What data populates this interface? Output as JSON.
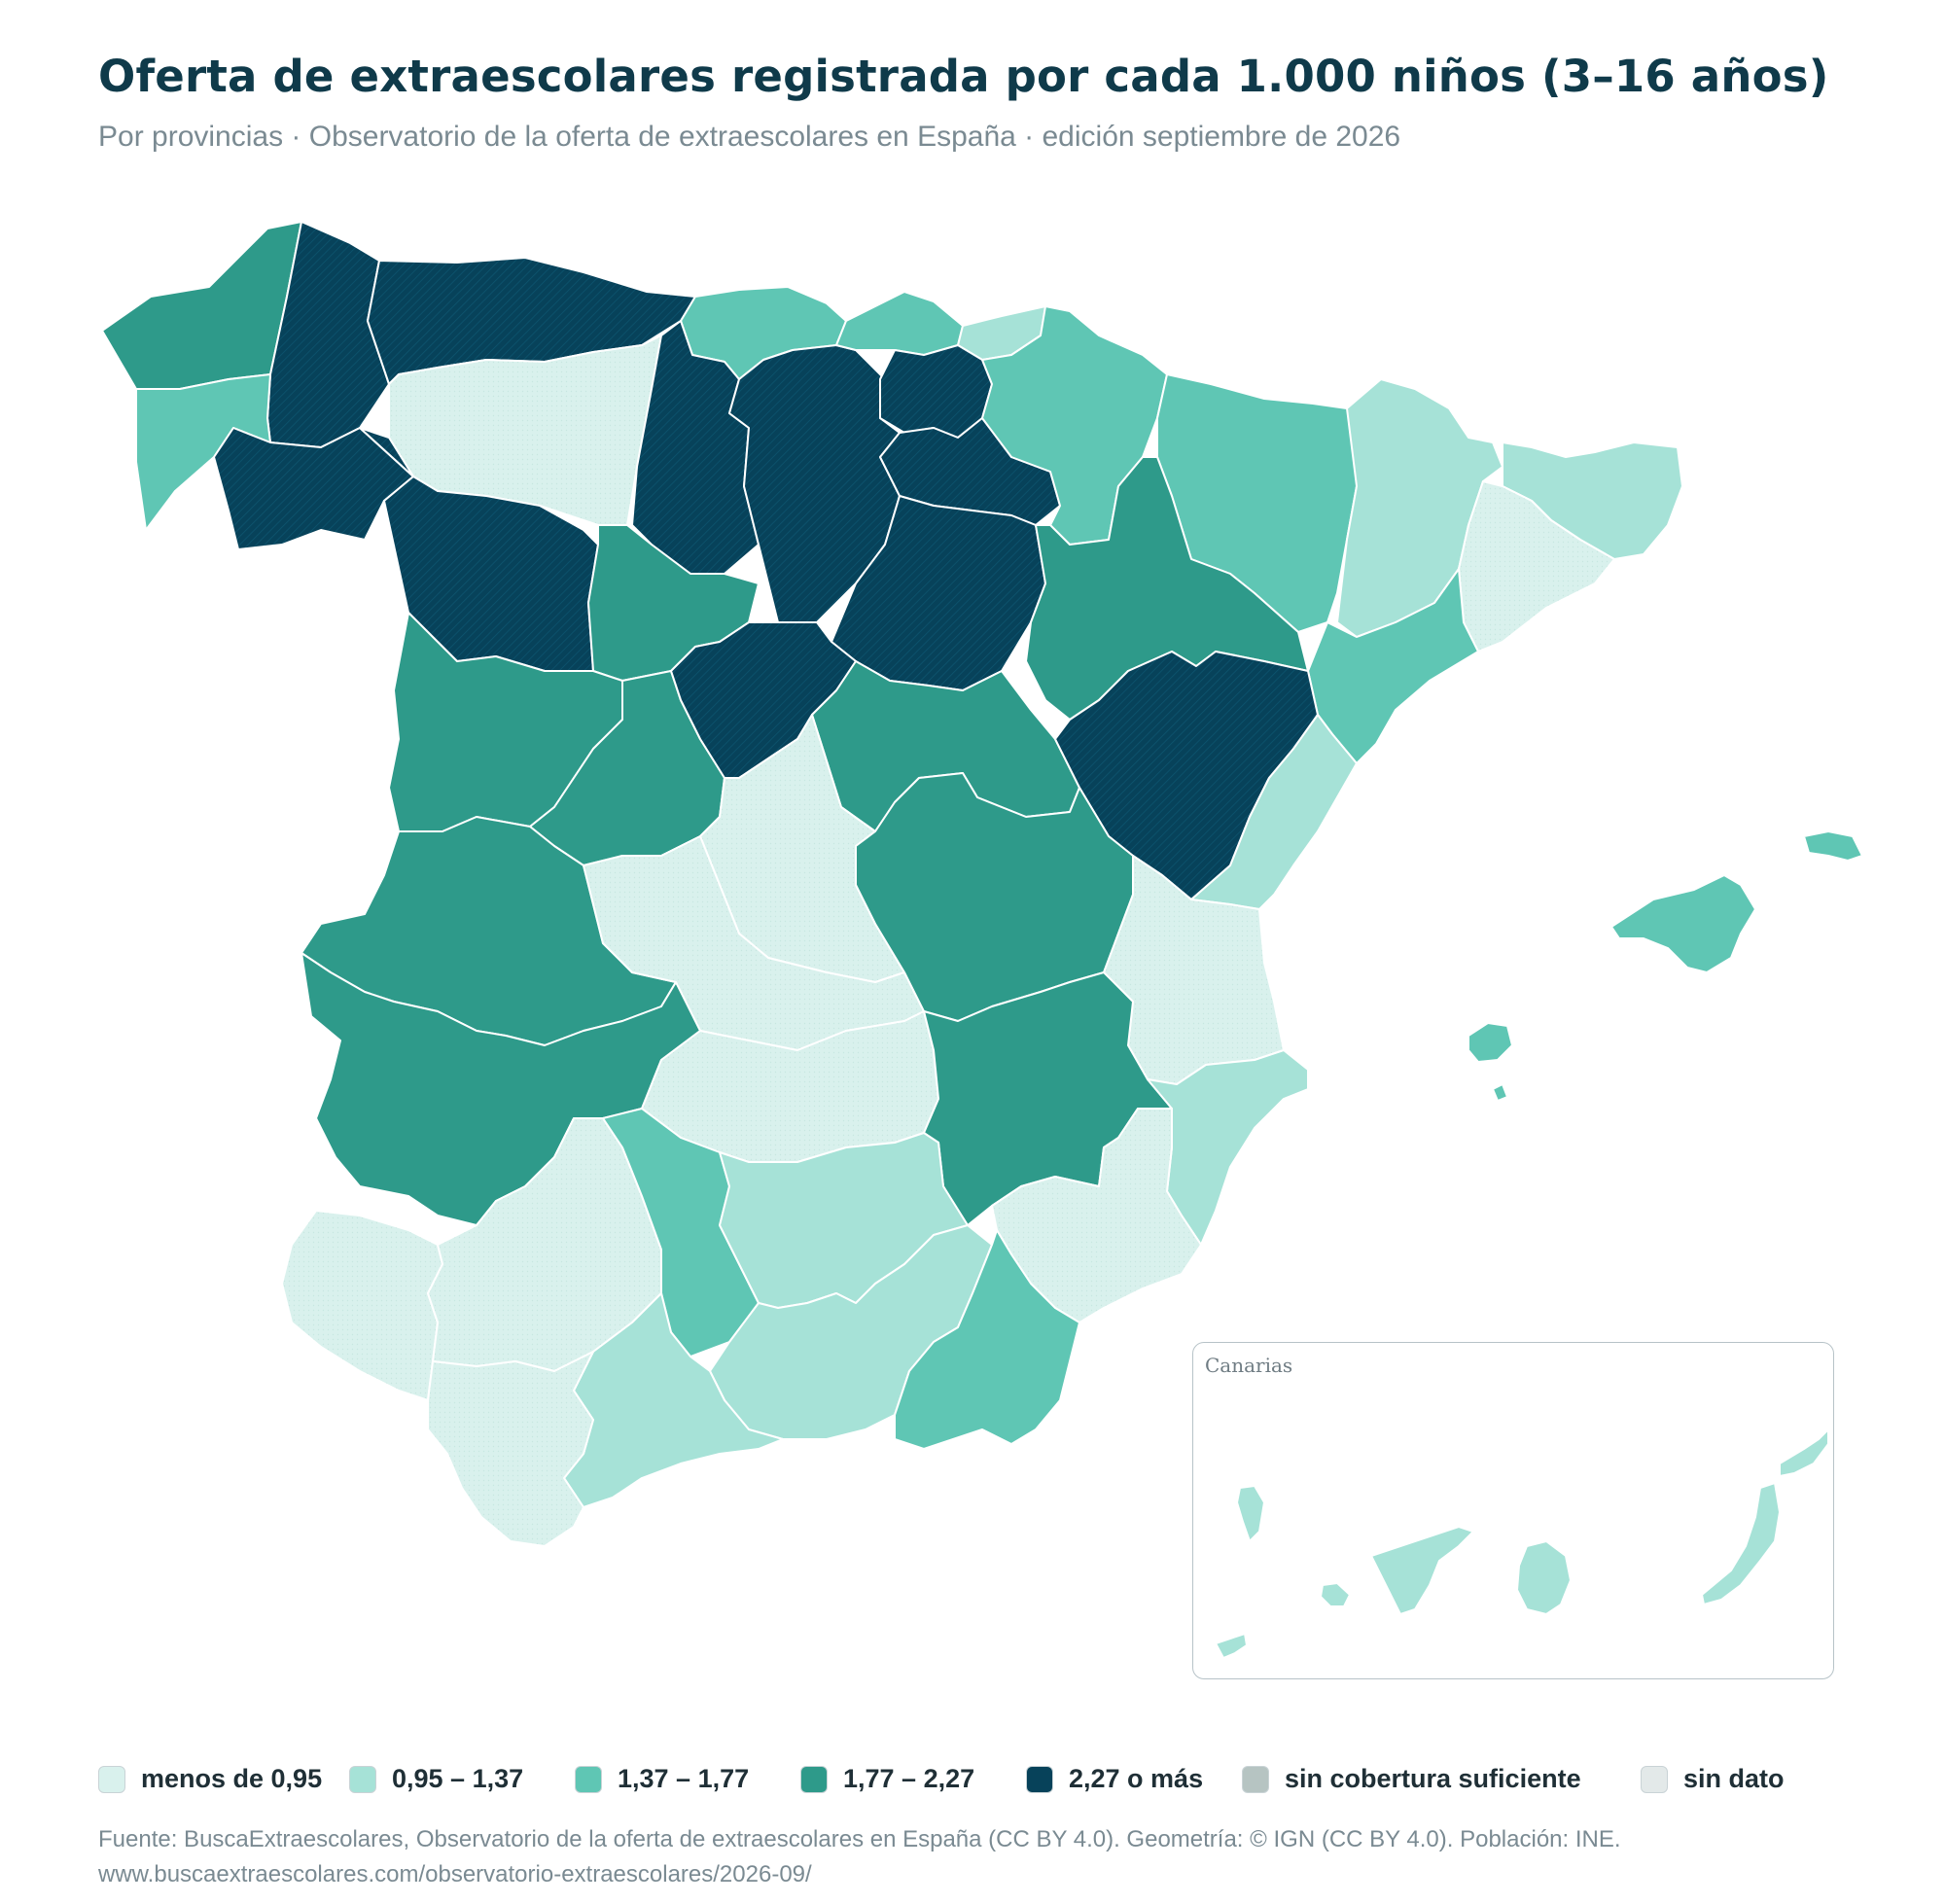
{
  "title": "Oferta de extraescolares registrada por cada 1.000 niños (3–16 años)",
  "subtitle": "Por provincias · Observatorio de la oferta de extraescolares en España · edición septiembre de 2026",
  "inset_label": "Canarias",
  "legend": [
    {
      "label": "menos de 0,95",
      "color": "#d9f1ed"
    },
    {
      "label": "0,95 – 1,37",
      "color": "#a6e2d7"
    },
    {
      "label": "1,37 – 1,77",
      "color": "#5fc6b4"
    },
    {
      "label": "1,77 – 2,27",
      "color": "#2e9a8a"
    },
    {
      "label": "2,27 o más",
      "color": "#07425a"
    },
    {
      "label": "sin cobertura suficiente",
      "color": "#b6c4c2"
    },
    {
      "label": "sin dato",
      "color": "#e3e9e9"
    }
  ],
  "source": "Fuente: BuscaExtraescolares, Observatorio de la oferta de extraescolares en España (CC BY 4.0). Geometría: © IGN (CC BY 4.0). Población: INE.",
  "url": "www.buscaextraescolares.com/observatorio-extraescolares/2026-09/",
  "provinces": [
    {
      "name": "A Coruña",
      "class": 3
    },
    {
      "name": "Lugo",
      "class": 4
    },
    {
      "name": "Pontevedra",
      "class": 2
    },
    {
      "name": "Ourense",
      "class": 4
    },
    {
      "name": "Asturias",
      "class": 4
    },
    {
      "name": "León",
      "class": 0
    },
    {
      "name": "Zamora",
      "class": 4
    },
    {
      "name": "Cantabria",
      "class": 2
    },
    {
      "name": "Palencia",
      "class": 4
    },
    {
      "name": "Burgos",
      "class": 4
    },
    {
      "name": "Vizcaya",
      "class": 2
    },
    {
      "name": "Guipúzcoa",
      "class": 1
    },
    {
      "name": "Álava",
      "class": 4
    },
    {
      "name": "La Rioja",
      "class": 4
    },
    {
      "name": "Navarra",
      "class": 2
    },
    {
      "name": "Huesca",
      "class": 2
    },
    {
      "name": "Lleida",
      "class": 1
    },
    {
      "name": "Girona",
      "class": 1
    },
    {
      "name": "Barcelona",
      "class": 0
    },
    {
      "name": "Valladolid",
      "class": 3
    },
    {
      "name": "Soria",
      "class": 4
    },
    {
      "name": "Zaragoza",
      "class": 3
    },
    {
      "name": "Tarragona",
      "class": 2
    },
    {
      "name": "Salamanca",
      "class": 3
    },
    {
      "name": "Ávila",
      "class": 3
    },
    {
      "name": "Segovia",
      "class": 4
    },
    {
      "name": "Guadalajara",
      "class": 3
    },
    {
      "name": "Teruel",
      "class": 4
    },
    {
      "name": "Castellón",
      "class": 1
    },
    {
      "name": "Madrid",
      "class": 0
    },
    {
      "name": "Cáceres",
      "class": 3
    },
    {
      "name": "Toledo",
      "class": 0
    },
    {
      "name": "Cuenca",
      "class": 3
    },
    {
      "name": "Valencia",
      "class": 0
    },
    {
      "name": "Badajoz",
      "class": 3
    },
    {
      "name": "Ciudad Real",
      "class": 0
    },
    {
      "name": "Albacete",
      "class": 3
    },
    {
      "name": "Alicante",
      "class": 1
    },
    {
      "name": "Murcia",
      "class": 0
    },
    {
      "name": "Huelva",
      "class": 0
    },
    {
      "name": "Sevilla",
      "class": 0
    },
    {
      "name": "Córdoba",
      "class": 2
    },
    {
      "name": "Jaén",
      "class": 1
    },
    {
      "name": "Granada",
      "class": 1
    },
    {
      "name": "Almería",
      "class": 2
    },
    {
      "name": "Málaga",
      "class": 1
    },
    {
      "name": "Cádiz",
      "class": 0
    },
    {
      "name": "Baleares",
      "class": 2
    },
    {
      "name": "Las Palmas",
      "class": 1
    },
    {
      "name": "Santa Cruz de Tenerife",
      "class": 1
    }
  ]
}
